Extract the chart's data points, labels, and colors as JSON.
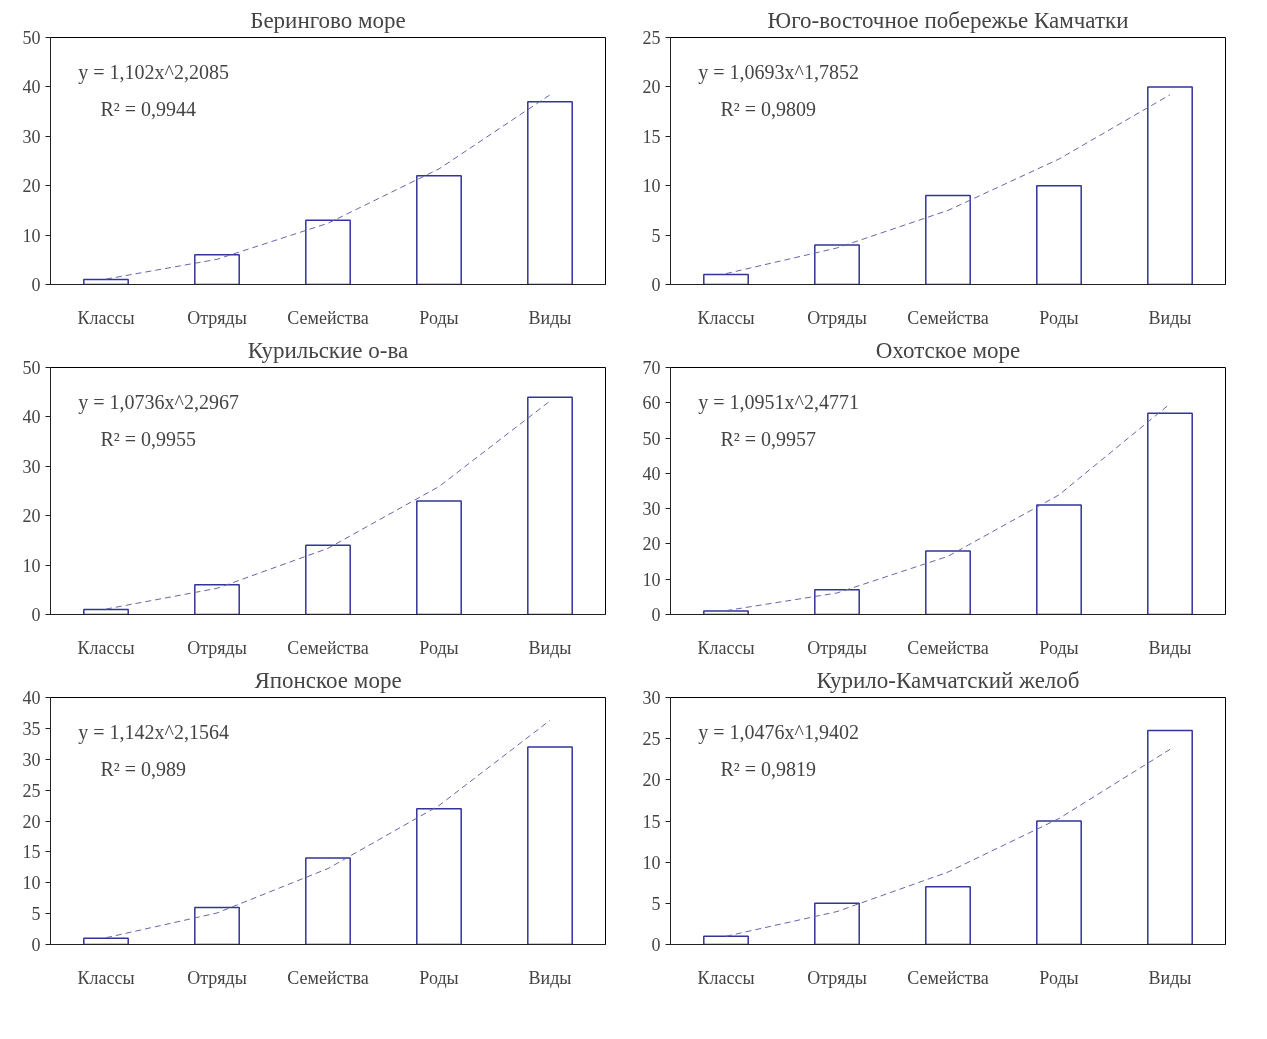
{
  "chart_data": [
    {
      "type": "bar",
      "title": "Берингово море",
      "categories": [
        "Классы",
        "Отряды",
        "Семейства",
        "Роды",
        "Виды"
      ],
      "ylim": [
        0,
        50
      ],
      "yticks": [
        0,
        10,
        20,
        30,
        40,
        50
      ],
      "grid": false,
      "annotations": [
        "y = 1,102x^2,2085",
        "R² = 0,9944"
      ],
      "series": [
        {
          "color": "#333399",
          "values": [
            1,
            6,
            13,
            22,
            37
          ]
        },
        {
          "type": "line",
          "color": "#6666aa",
          "line_style": "dashed",
          "values": [
            1.1,
            5.1,
            12.4,
            23.4,
            38.4
          ]
        }
      ]
    },
    {
      "type": "bar",
      "title": "Юго-восточное побережье Камчатки",
      "categories": [
        "Классы",
        "Отряды",
        "Семейства",
        "Роды",
        "Виды"
      ],
      "ylim": [
        0,
        25
      ],
      "yticks": [
        0,
        5,
        10,
        15,
        20,
        25
      ],
      "grid": false,
      "annotations": [
        "y = 1,0693x^1,7852",
        "R² = 0,9809"
      ],
      "series": [
        {
          "color": "#333399",
          "values": [
            1,
            4,
            9,
            10,
            20
          ]
        },
        {
          "type": "line",
          "color": "#6666aa",
          "line_style": "dashed",
          "values": [
            1.1,
            3.7,
            7.5,
            12.7,
            19.2
          ]
        }
      ]
    },
    {
      "type": "bar",
      "title": "Курильские о-ва",
      "categories": [
        "Классы",
        "Отряды",
        "Семейства",
        "Роды",
        "Виды"
      ],
      "ylim": [
        0,
        50
      ],
      "yticks": [
        0,
        10,
        20,
        30,
        40,
        50
      ],
      "grid": false,
      "annotations": [
        "y = 1,0736x^2,2967",
        "R² = 0,9955"
      ],
      "series": [
        {
          "color": "#333399",
          "values": [
            1,
            6,
            14,
            23,
            44
          ]
        },
        {
          "type": "line",
          "color": "#6666aa",
          "line_style": "dashed",
          "values": [
            1.1,
            5.3,
            13.4,
            25.9,
            43.2
          ]
        }
      ]
    },
    {
      "type": "bar",
      "title": "Охотское море",
      "categories": [
        "Классы",
        "Отряды",
        "Семейства",
        "Роды",
        "Виды"
      ],
      "ylim": [
        0,
        70
      ],
      "yticks": [
        0,
        10,
        20,
        30,
        40,
        50,
        60,
        70
      ],
      "grid": false,
      "annotations": [
        "y = 1,0951x^2,4771",
        "R² = 0,9957"
      ],
      "series": [
        {
          "color": "#333399",
          "values": [
            1,
            7,
            18,
            31,
            57
          ]
        },
        {
          "type": "line",
          "color": "#6666aa",
          "line_style": "dashed",
          "values": [
            1.1,
            6.1,
            16.5,
            33.9,
            59.7
          ]
        }
      ]
    },
    {
      "type": "bar",
      "title": "Японское море",
      "categories": [
        "Классы",
        "Отряды",
        "Семейства",
        "Роды",
        "Виды"
      ],
      "ylim": [
        0,
        40
      ],
      "yticks": [
        0,
        5,
        10,
        15,
        20,
        25,
        30,
        35,
        40
      ],
      "grid": false,
      "annotations": [
        "y = 1,142x^2,1564",
        "R² = 0,989"
      ],
      "series": [
        {
          "color": "#333399",
          "values": [
            1,
            6,
            14,
            22,
            32
          ]
        },
        {
          "type": "line",
          "color": "#6666aa",
          "line_style": "dashed",
          "values": [
            1.1,
            5.1,
            12.3,
            22.5,
            36.3
          ]
        }
      ]
    },
    {
      "type": "bar",
      "title": "Курило-Камчатский желоб",
      "categories": [
        "Классы",
        "Отряды",
        "Семейства",
        "Роды",
        "Виды"
      ],
      "ylim": [
        0,
        30
      ],
      "yticks": [
        0,
        5,
        10,
        15,
        20,
        25,
        30
      ],
      "grid": false,
      "annotations": [
        "y = 1,0476x^1,9402",
        "R² = 0,9819"
      ],
      "series": [
        {
          "color": "#333399",
          "values": [
            1,
            5,
            7,
            15,
            26
          ]
        },
        {
          "type": "line",
          "color": "#6666aa",
          "line_style": "dashed",
          "values": [
            1.0,
            4.0,
            8.8,
            15.3,
            23.7
          ]
        }
      ]
    }
  ]
}
